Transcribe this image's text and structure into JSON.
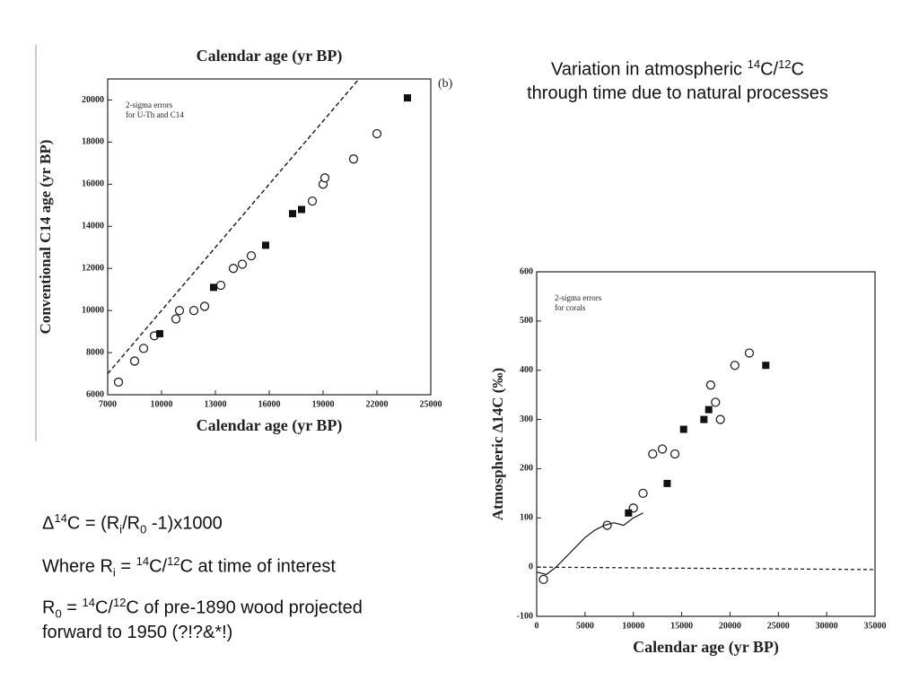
{
  "title_lines": [
    [
      "Variation in atmospheric ",
      {
        "sup": "14"
      },
      "C/",
      {
        "sup": "12"
      },
      "C"
    ],
    [
      "through time due to natural processes"
    ]
  ],
  "notes": [
    [
      "Δ",
      {
        "sup": "14"
      },
      "C = (R",
      {
        "sub": "i"
      },
      "/R",
      {
        "sub": "0"
      },
      " -1)x1000"
    ],
    [
      "Where R",
      {
        "sub": "i"
      },
      " = ",
      {
        "sup": "14"
      },
      "C/",
      {
        "sup": "12"
      },
      "C at time of interest"
    ],
    [
      "R",
      {
        "sub": "0"
      },
      " = ",
      {
        "sup": "14"
      },
      "C/",
      {
        "sup": "12"
      },
      "C of pre-1890 wood projected"
    ],
    [
      "forward to 1950 (?!?&*!)"
    ]
  ],
  "chart_data": [
    {
      "type": "scatter",
      "xlabel": "Calendar age (yr BP)",
      "xlabel_top": true,
      "ylabel": "Conventional C14 age (yr BP)",
      "panel_label": "(b)",
      "annotations": [
        "2-sigma errors",
        "for U-Th and C14"
      ],
      "diagonal": true,
      "xlim": [
        7000,
        25000
      ],
      "xticks": [
        7000,
        10000,
        13000,
        16000,
        19000,
        22000,
        25000
      ],
      "ylim": [
        6000,
        21000
      ],
      "yticks": [
        6000,
        8000,
        10000,
        12000,
        14000,
        16000,
        18000,
        20000
      ],
      "series": [
        {
          "marker": "circle",
          "color": "#222222",
          "x": [
            7600,
            8500,
            9000,
            9600,
            10800,
            11000,
            11800,
            12400,
            13300,
            14000,
            14500,
            15000,
            18400,
            19000,
            19100,
            20700,
            22000
          ],
          "values": [
            6600,
            7600,
            8200,
            8800,
            9600,
            10000,
            10000,
            10200,
            11200,
            12000,
            12200,
            12600,
            15200,
            16000,
            16300,
            17200,
            18400
          ]
        },
        {
          "marker": "square",
          "color": "#111111",
          "x": [
            9900,
            12900,
            15800,
            17300,
            17800,
            23700
          ],
          "values": [
            8900,
            11100,
            13100,
            14600,
            14800,
            20100
          ]
        }
      ]
    },
    {
      "type": "scatter",
      "xlabel": "Calendar age (yr BP)",
      "ylabel": "Atmospheric Δ14C (‰)",
      "annotations": [
        "2-sigma errors",
        "for corals"
      ],
      "xlim": [
        0,
        35000
      ],
      "xticks": [
        0,
        5000,
        10000,
        15000,
        20000,
        25000,
        30000,
        35000
      ],
      "ylim": [
        -100,
        600
      ],
      "yticks": [
        -100,
        0,
        100,
        200,
        300,
        400,
        500,
        600
      ],
      "series": [
        {
          "marker": "circle",
          "color": "#222222",
          "x": [
            700,
            7300,
            10000,
            11000,
            12000,
            13000,
            14300,
            18000,
            18500,
            19000,
            20500,
            22000
          ],
          "values": [
            -25,
            85,
            120,
            150,
            230,
            240,
            230,
            370,
            335,
            300,
            410,
            435
          ]
        },
        {
          "marker": "square",
          "color": "#111111",
          "x": [
            9500,
            13500,
            15200,
            17300,
            17800,
            23700
          ],
          "values": [
            110,
            170,
            280,
            300,
            320,
            410
          ]
        },
        {
          "marker": "line",
          "color": "#222222",
          "x": [
            0,
            1000,
            2000,
            3000,
            4000,
            5000,
            6000,
            7000,
            8000,
            9000,
            10000,
            11000
          ],
          "values": [
            -10,
            -15,
            0,
            20,
            40,
            60,
            75,
            85,
            90,
            85,
            100,
            110
          ]
        },
        {
          "marker": "dash",
          "color": "#222222",
          "x": [
            0,
            35000
          ],
          "values": [
            0,
            -5
          ]
        }
      ]
    }
  ]
}
